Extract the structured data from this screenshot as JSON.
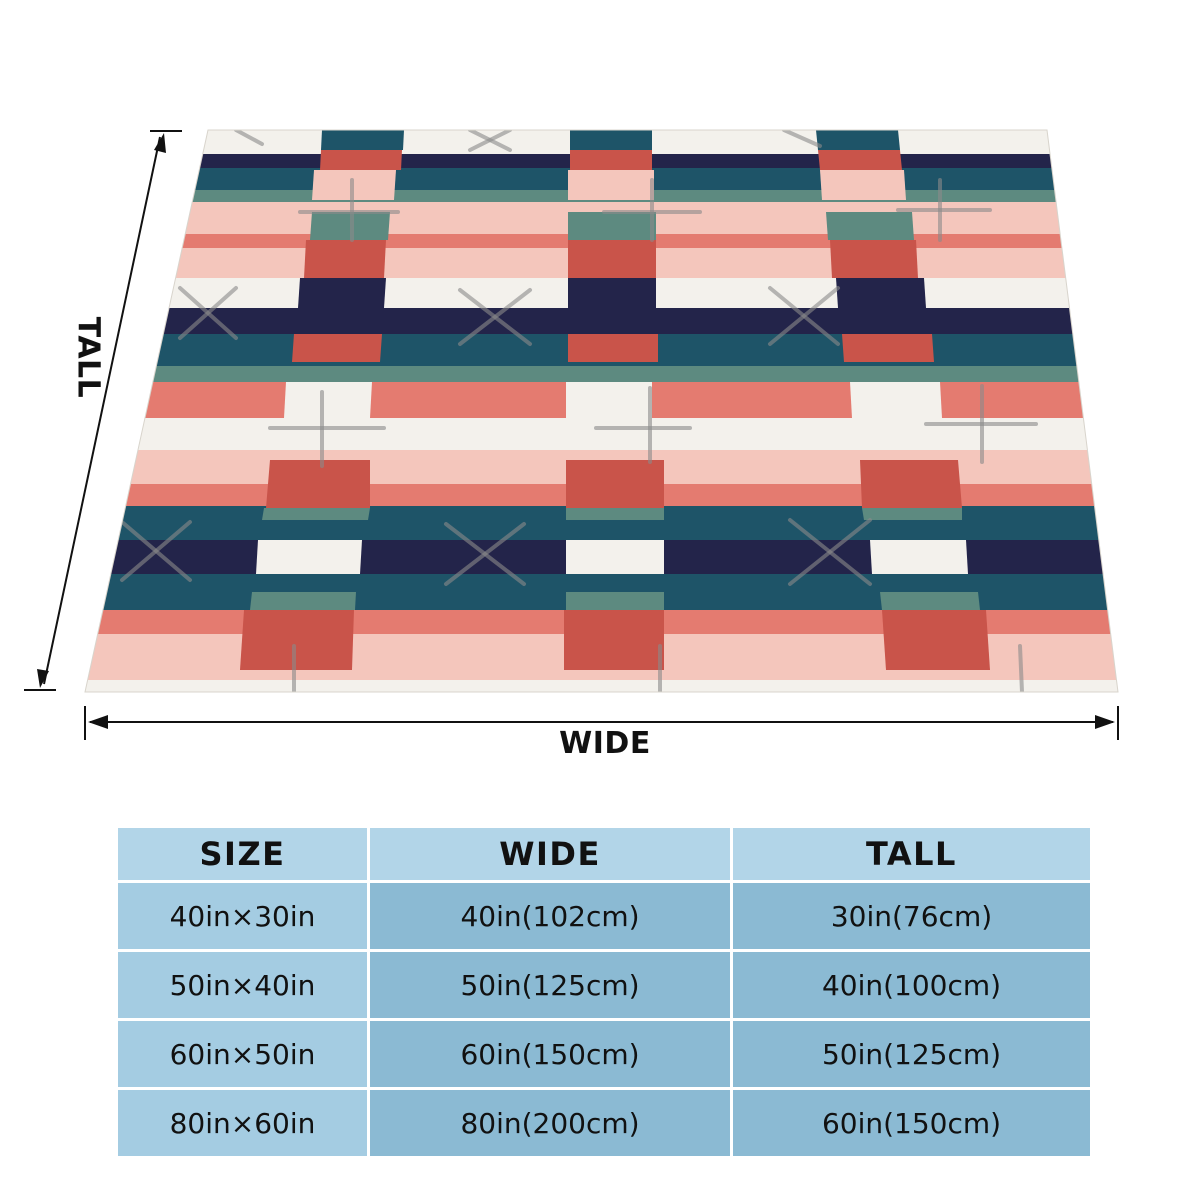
{
  "dimension_labels": {
    "tall": "TALL",
    "wide": "WIDE"
  },
  "colors": {
    "navy": "#23244a",
    "teal": "#1e5468",
    "sage": "#5d8a80",
    "coral": "#e47b70",
    "blush": "#f4c6bc",
    "brick": "#c9544a",
    "cream": "#f3f1ec",
    "table_header": "#b2d5e8",
    "table_body": "#8bbad3"
  },
  "size_table": {
    "headers": [
      "SIZE",
      "WIDE",
      "TALL"
    ],
    "rows": [
      {
        "size": "40in×30in",
        "wide": "40in(102cm)",
        "tall": "30in(76cm)"
      },
      {
        "size": "50in×40in",
        "wide": "50in(125cm)",
        "tall": "40in(100cm)"
      },
      {
        "size": "60in×50in",
        "wide": "60in(150cm)",
        "tall": "50in(125cm)"
      },
      {
        "size": "80in×60in",
        "wide": "80in(200cm)",
        "tall": "60in(150cm)"
      }
    ]
  }
}
